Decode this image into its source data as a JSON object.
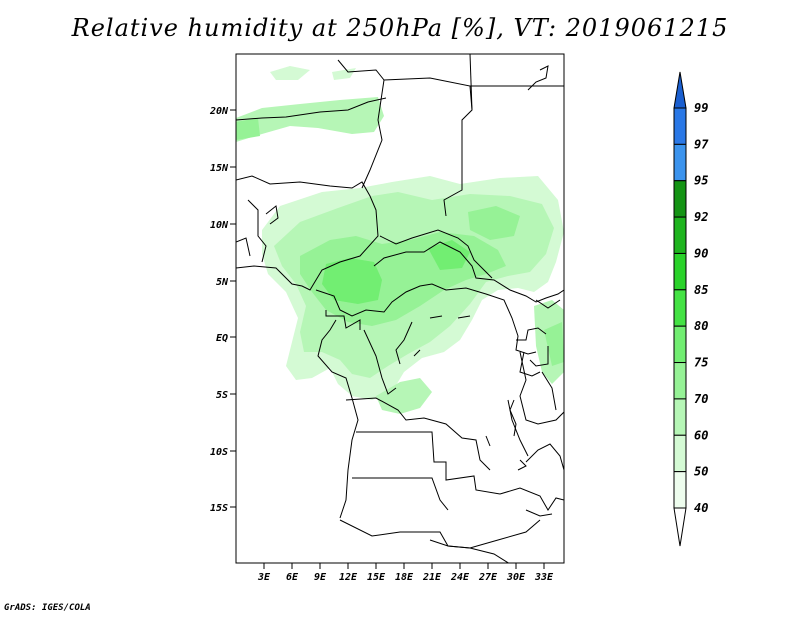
{
  "title": "Relative humidity at 250hPa [%], VT: 2019061215",
  "credit": "GrADS: IGES/COLA",
  "map": {
    "lat_labels": [
      "20N",
      "15N",
      "10N",
      "5N",
      "EQ",
      "5S",
      "10S",
      "15S"
    ],
    "lon_labels": [
      "3E",
      "6E",
      "9E",
      "12E",
      "15E",
      "18E",
      "21E",
      "24E",
      "27E",
      "30E",
      "33E"
    ]
  },
  "colorbar": {
    "labels": [
      "99",
      "97",
      "95",
      "92",
      "90",
      "85",
      "80",
      "75",
      "70",
      "60",
      "50",
      "40"
    ],
    "colors": [
      "#1a5fd0",
      "#2a78e6",
      "#3c94ee",
      "#149414",
      "#1eb41e",
      "#2ad22a",
      "#44e244",
      "#72ee72",
      "#96f296",
      "#b6f6b6",
      "#d4fad4",
      "#eefdee"
    ]
  }
}
